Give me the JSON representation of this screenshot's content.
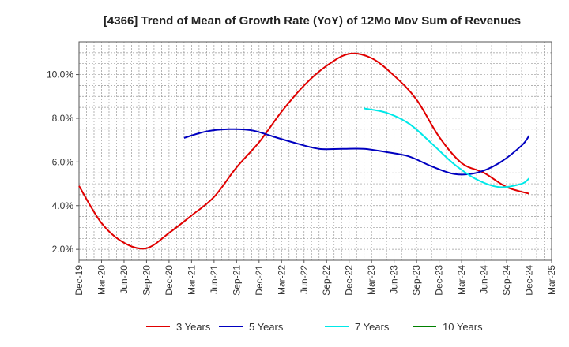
{
  "chart_data": {
    "type": "line",
    "title": "[4366]  Trend of Mean of Growth Rate (YoY) of 12Mo Mov Sum of Revenues",
    "xlabel": "",
    "ylabel": "",
    "ylim": [
      1.5,
      11.5
    ],
    "yticks": [
      2.0,
      4.0,
      6.0,
      8.0,
      10.0
    ],
    "ytick_labels": [
      "2.0%",
      "4.0%",
      "6.0%",
      "8.0%",
      "10.0%"
    ],
    "xtick_labels": [
      "Dec-19",
      "Mar-20",
      "Jun-20",
      "Sep-20",
      "Dec-20",
      "Mar-21",
      "Jun-21",
      "Sep-21",
      "Dec-21",
      "Mar-22",
      "Jun-22",
      "Sep-22",
      "Dec-22",
      "Mar-23",
      "Jun-23",
      "Sep-23",
      "Dec-23",
      "Mar-24",
      "Jun-24",
      "Sep-24",
      "Dec-24",
      "Mar-25"
    ],
    "x_unit": "months since Dec-19",
    "grid": true,
    "legend_position": "bottom",
    "series": [
      {
        "name": "3 Years",
        "color": "#e00000",
        "x": [
          0,
          3,
          6,
          9,
          12,
          15,
          18,
          21,
          24,
          27,
          30,
          33,
          36,
          39,
          42,
          45,
          48,
          51,
          54,
          57,
          60
        ],
        "values": [
          4.9,
          3.2,
          2.3,
          2.05,
          2.75,
          3.55,
          4.4,
          5.75,
          6.9,
          8.3,
          9.5,
          10.4,
          10.95,
          10.75,
          9.95,
          8.85,
          7.15,
          5.95,
          5.5,
          4.85,
          4.55
        ]
      },
      {
        "name": "5 Years",
        "color": "#0000c0",
        "x": [
          14,
          17,
          20,
          23,
          26,
          29,
          32,
          35,
          38,
          41,
          44,
          47,
          50,
          53,
          56,
          59,
          60
        ],
        "values": [
          7.1,
          7.4,
          7.5,
          7.45,
          7.15,
          6.85,
          6.6,
          6.6,
          6.6,
          6.45,
          6.25,
          5.8,
          5.45,
          5.5,
          5.95,
          6.75,
          7.2
        ]
      },
      {
        "name": "7 Years",
        "color": "#00e8e8",
        "x": [
          38,
          41,
          44,
          47,
          50,
          53,
          56,
          59,
          60
        ],
        "values": [
          8.45,
          8.25,
          7.75,
          6.85,
          5.9,
          5.2,
          4.85,
          5.0,
          5.25
        ]
      },
      {
        "name": "10 Years",
        "color": "#008000",
        "x": [],
        "values": []
      }
    ]
  }
}
